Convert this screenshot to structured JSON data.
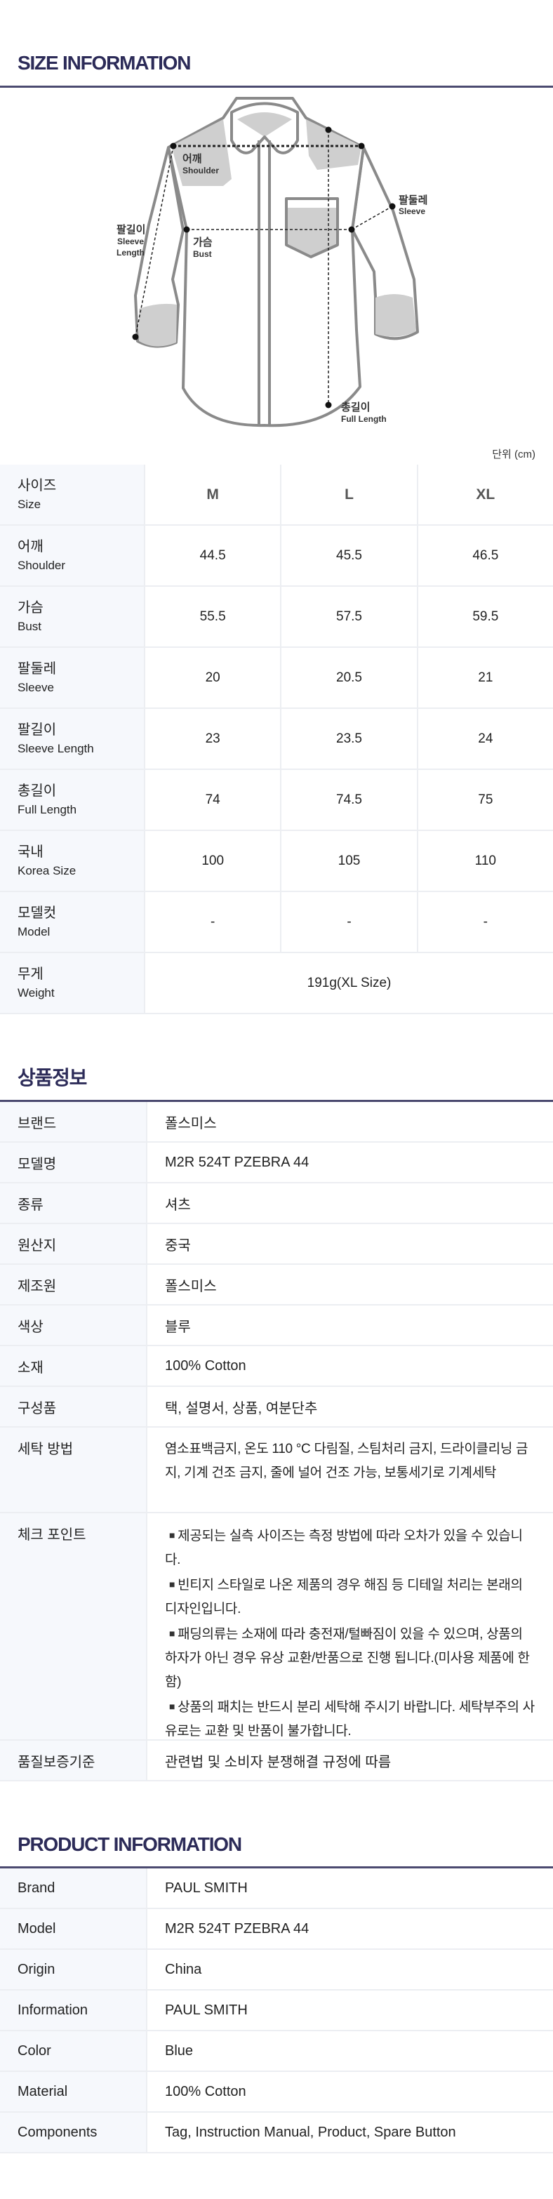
{
  "size_section": {
    "title": "SIZE INFORMATION",
    "diagram_labels": {
      "shoulder_ko": "어깨",
      "shoulder_en": "Shoulder",
      "sleeve_length_ko": "팔길이",
      "sleeve_length_en1": "Sleeve",
      "sleeve_length_en2": "Length",
      "bust_ko": "가슴",
      "bust_en": "Bust",
      "sleeve_ko": "팔둘레",
      "sleeve_en": "Sleeve",
      "full_length_ko": "총길이",
      "full_length_en": "Full Length"
    },
    "unit": "단위 (cm)",
    "header": {
      "ko": "사이즈",
      "en": "Size",
      "sizes": [
        "M",
        "L",
        "XL"
      ]
    },
    "rows": [
      {
        "ko": "어깨",
        "en": "Shoulder",
        "values": [
          "44.5",
          "45.5",
          "46.5"
        ]
      },
      {
        "ko": "가슴",
        "en": "Bust",
        "values": [
          "55.5",
          "57.5",
          "59.5"
        ]
      },
      {
        "ko": "팔둘레",
        "en": "Sleeve",
        "values": [
          "20",
          "20.5",
          "21"
        ]
      },
      {
        "ko": "팔길이",
        "en": "Sleeve Length",
        "values": [
          "23",
          "23.5",
          "24"
        ]
      },
      {
        "ko": "총길이",
        "en": "Full Length",
        "values": [
          "74",
          "74.5",
          "75"
        ]
      },
      {
        "ko": "국내",
        "en": "Korea Size",
        "values": [
          "100",
          "105",
          "110"
        ]
      },
      {
        "ko": "모델컷",
        "en": "Model",
        "values": [
          "-",
          "-",
          "-"
        ]
      }
    ],
    "weight": {
      "ko": "무게",
      "en": "Weight",
      "value": "191g(XL Size)"
    }
  },
  "info_ko": {
    "title": "상품정보",
    "rows": [
      {
        "label": "브랜드",
        "value": "폴스미스"
      },
      {
        "label": "모델명",
        "value": "M2R 524T PZEBRA 44"
      },
      {
        "label": "종류",
        "value": "셔츠"
      },
      {
        "label": "원산지",
        "value": "중국"
      },
      {
        "label": "제조원",
        "value": "폴스미스"
      },
      {
        "label": "색상",
        "value": "블루"
      },
      {
        "label": "소재",
        "value": "100% Cotton"
      },
      {
        "label": "구성품",
        "value": "택, 설명서, 상품, 여분단추"
      }
    ],
    "wash": {
      "label": "세탁 방법",
      "value": "염소표백금지, 온도 110 °C 다림질, 스팀처리 금지, 드라이클리닝 금지, 기계 건조 금지, 줄에 널어 건조 가능, 보통세기로 기계세탁"
    },
    "check": {
      "label": "체크 포인트",
      "bullet": "■",
      "items": [
        "제공되는 실측 사이즈는 측정 방법에 따라 오차가 있을 수 있습니다.",
        "빈티지 스타일로 나온 제품의 경우 해짐 등 디테일 처리는 본래의 디자인입니다.",
        "패딩의류는 소재에 따라 충전재/털빠짐이 있을 수 있으며, 상품의 하자가 아닌 경우 유상 교환/반품으로 진행 됩니다.(미사용 제품에 한함)",
        "상품의 패치는 반드시 분리 세탁해 주시기 바랍니다. 세탁부주의 사유로는 교환 및 반품이 불가합니다."
      ]
    },
    "quality": {
      "label": "품질보증기준",
      "value": "관련법 및 소비자 분쟁해결 규정에 따름"
    }
  },
  "info_en": {
    "title": "PRODUCT INFORMATION",
    "rows": [
      {
        "label": "Brand",
        "value": "PAUL SMITH"
      },
      {
        "label": "Model",
        "value": "M2R 524T PZEBRA 44"
      },
      {
        "label": "Origin",
        "value": "China"
      },
      {
        "label": "Information",
        "value": "PAUL SMITH"
      },
      {
        "label": "Color",
        "value": "Blue"
      },
      {
        "label": "Material",
        "value": "100% Cotton"
      },
      {
        "label": "Components",
        "value": "Tag, Instruction Manual, Product, Spare Button"
      }
    ]
  },
  "colors": {
    "title": "#2c2b58",
    "rule": "#4b4a70",
    "label_bg": "#f6f8fc",
    "diagram_stroke": "#8a8a8a",
    "diagram_fill": "#cfcfcf"
  }
}
